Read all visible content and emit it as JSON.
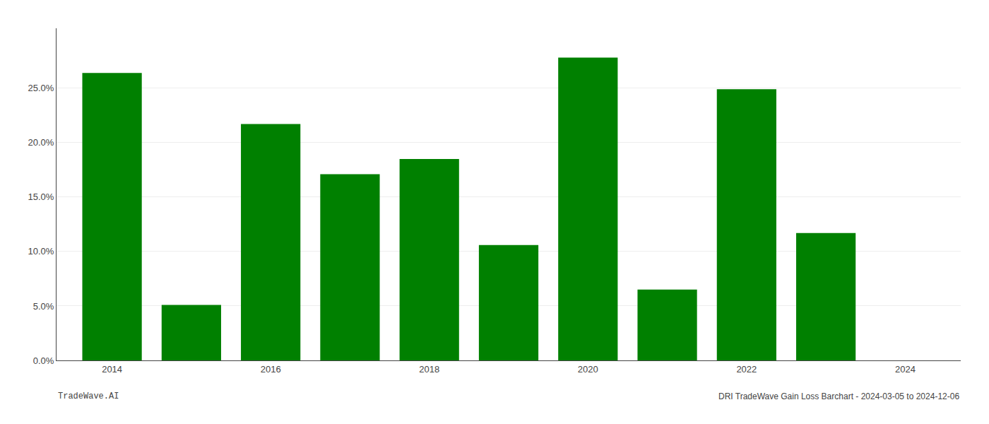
{
  "chart_data": {
    "type": "bar",
    "x": [
      2014,
      2015,
      2016,
      2017,
      2018,
      2019,
      2020,
      2021,
      2022,
      2023
    ],
    "values": [
      0.264,
      0.051,
      0.217,
      0.171,
      0.185,
      0.106,
      0.278,
      0.065,
      0.249,
      0.117
    ],
    "color": "#008000",
    "xlim": [
      2013.3,
      2024.7
    ],
    "xticks": [
      2014,
      2016,
      2018,
      2020,
      2022,
      2024
    ],
    "ylim": [
      0,
      0.305
    ],
    "yticks": [
      {
        "value": 0.0,
        "label": "0.0%"
      },
      {
        "value": 0.05,
        "label": "5.0%"
      },
      {
        "value": 0.1,
        "label": "10.0%"
      },
      {
        "value": 0.15,
        "label": "15.0%"
      },
      {
        "value": 0.2,
        "label": "20.0%"
      },
      {
        "value": 0.25,
        "label": "25.0%"
      }
    ],
    "grid": true,
    "annotations": [
      "TradeWave.AI",
      "DRI TradeWave Gain Loss Barchart - 2024-03-05 to 2024-12-06"
    ]
  }
}
